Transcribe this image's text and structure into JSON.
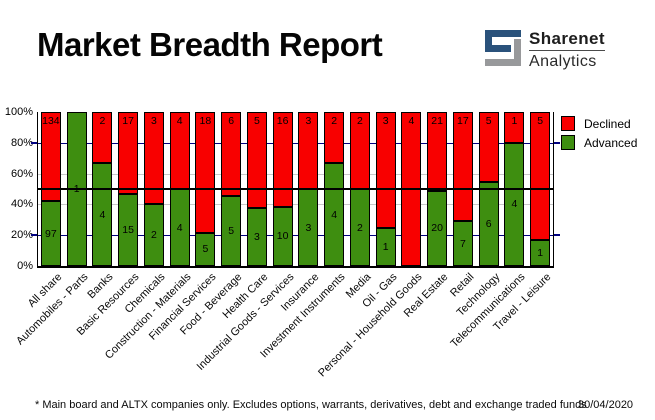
{
  "header": {
    "title": "Market Breadth Report",
    "logo": {
      "line1": "Sharenet",
      "line2": "Analytics",
      "blue": "#2a527b",
      "gray": "#98999b"
    }
  },
  "legend": [
    {
      "label": "Declined",
      "color": "#f80000"
    },
    {
      "label": "Advanced",
      "color": "#3e8e10"
    }
  ],
  "chart_data": {
    "type": "bar",
    "stacked": true,
    "normalized": "each bar scaled to 100%, green = advanced share, red = declined share",
    "title": "Market Breadth Report",
    "categories": [
      "All share",
      "Automobiles - Parts",
      "Banks",
      "Basic Resources",
      "Chemicals",
      "Construction - Materials",
      "Financial Services",
      "Food - Beverage",
      "Health Care",
      "Industrial Goods - Services",
      "Insurance",
      "Investment Instruments",
      "Media",
      "Oil - Gas",
      "Personal - Household Goods",
      "Real Estate",
      "Retail",
      "Technology",
      "Telecommunications",
      "Travel - Leisure"
    ],
    "series": [
      {
        "name": "Declined",
        "color": "#f80000",
        "values": [
          134,
          0,
          2,
          17,
          3,
          4,
          18,
          6,
          5,
          16,
          3,
          2,
          2,
          3,
          4,
          21,
          17,
          5,
          1,
          5
        ]
      },
      {
        "name": "Advanced",
        "color": "#3e8e10",
        "values": [
          97,
          1,
          4,
          15,
          2,
          4,
          5,
          5,
          3,
          10,
          3,
          4,
          2,
          1,
          0,
          20,
          7,
          6,
          4,
          1
        ]
      }
    ],
    "xlabel": "",
    "ylabel": "",
    "ylim": [
      0,
      100
    ],
    "y_ticks": [
      "100%",
      "80%",
      "60%",
      "40%",
      "20%",
      "0%"
    ],
    "grid": {
      "navy_lines_at": [
        80,
        20
      ],
      "gray_lines_at": [
        60,
        40
      ],
      "black_line_at": 50,
      "navy_color": "#000080",
      "gray_color": "#c8c8c8"
    },
    "legend_position": "top-right-outside"
  },
  "footer": {
    "note": "* Main board and ALTX companies only. Excludes options, warrants, derivatives, debt and exchange traded funds",
    "date": "30/04/2020"
  }
}
